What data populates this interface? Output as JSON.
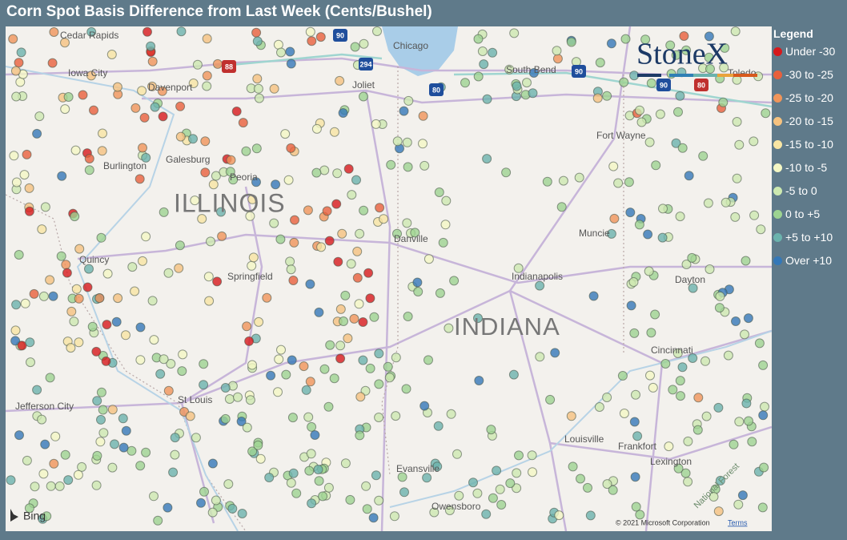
{
  "title": "Corn Spot Basis Difference from Last Week (Cents/Bushel)",
  "legend": {
    "title": "Legend",
    "items": [
      {
        "label": "Under -30",
        "color": "#d7191c"
      },
      {
        "label": "-30 to -25",
        "color": "#e8603c"
      },
      {
        "label": "-25 to -20",
        "color": "#f0955a"
      },
      {
        "label": "-20 to -15",
        "color": "#f5c27f"
      },
      {
        "label": "-15 to -10",
        "color": "#f8e5a3"
      },
      {
        "label": "-10 to -5",
        "color": "#f4f7c4"
      },
      {
        "label": "-5 to 0",
        "color": "#cde9b0"
      },
      {
        "label": "0 to +5",
        "color": "#9dd391"
      },
      {
        "label": "+5 to +10",
        "color": "#6bb3ad"
      },
      {
        "label": "Over +10",
        "color": "#3478b8"
      }
    ]
  },
  "map": {
    "cities": [
      "Cedar Rapids",
      "Iowa City",
      "Davenport",
      "Chicago",
      "Joliet",
      "South Bend",
      "Toledo",
      "Fort Wayne",
      "Burlington",
      "Galesburg",
      "Peoria",
      "Danville",
      "Muncie",
      "Quincy",
      "Springfield",
      "Indianapolis",
      "Dayton",
      "Cincinnati",
      "St Louis",
      "Jefferson City",
      "Louisville",
      "Frankfort",
      "Lexington",
      "Evansville",
      "Owensboro",
      "National Forest"
    ],
    "states": [
      "ILLINOIS",
      "INDIANA"
    ],
    "shields": [
      "90",
      "88",
      "294",
      "80",
      "90",
      "90",
      "80"
    ],
    "logo": "StoneX",
    "provider": "Bing",
    "attribution": "© 2021 Microsoft Corporation",
    "terms": "Terms"
  }
}
